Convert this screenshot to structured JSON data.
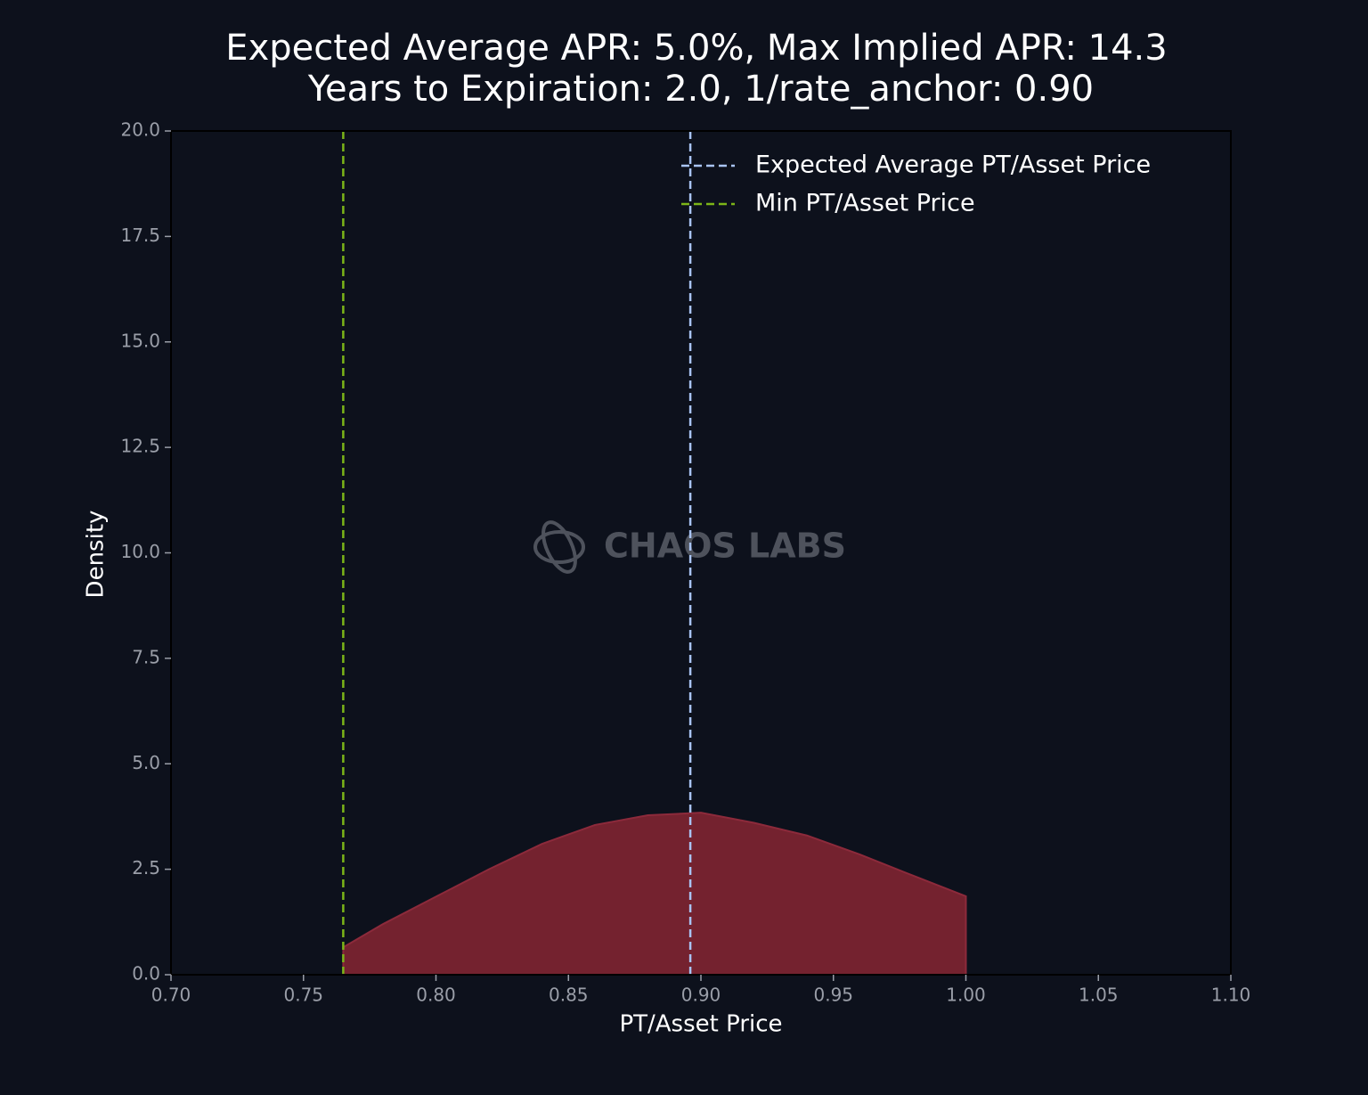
{
  "chart_data": {
    "type": "area",
    "title": [
      "Expected Average APR: 5.0%, Max Implied APR: 14.3",
      "Years to Expiration: 2.0, 1/rate_anchor: 0.90"
    ],
    "xlabel": "PT/Asset Price",
    "ylabel": "Density",
    "watermark": "CHAOS LABS",
    "xlim": [
      0.7,
      1.1
    ],
    "ylim": [
      0,
      20
    ],
    "xticks": [
      {
        "value": 0.7,
        "label": "0.70"
      },
      {
        "value": 0.75,
        "label": "0.75"
      },
      {
        "value": 0.8,
        "label": "0.80"
      },
      {
        "value": 0.85,
        "label": "0.85"
      },
      {
        "value": 0.9,
        "label": "0.90"
      },
      {
        "value": 0.95,
        "label": "0.95"
      },
      {
        "value": 1.0,
        "label": "1.00"
      },
      {
        "value": 1.05,
        "label": "1.05"
      },
      {
        "value": 1.1,
        "label": "1.10"
      }
    ],
    "yticks": [
      {
        "value": 0,
        "label": "0.0"
      },
      2.5,
      {
        "value": 5,
        "label": "5.0"
      },
      7.5,
      {
        "value": 10,
        "label": "10.0"
      },
      12.5,
      {
        "value": 15,
        "label": "15.0"
      },
      17.5,
      {
        "value": 20,
        "label": "20.0"
      }
    ],
    "series": [
      {
        "color": "#74222f",
        "x": [
          0.765,
          0.78,
          0.8,
          0.82,
          0.84,
          0.86,
          0.88,
          0.9,
          0.92,
          0.94,
          0.96,
          0.98,
          1.0
        ],
        "values": [
          0.65,
          1.2,
          1.85,
          2.5,
          3.1,
          3.55,
          3.78,
          3.84,
          3.6,
          3.3,
          2.85,
          2.35,
          1.86
        ]
      }
    ],
    "vlines": [
      {
        "name": "Expected Average PT/Asset Price",
        "color": "#a9c4f5",
        "x": 0.896
      },
      {
        "name": "Min PT/Asset Price",
        "color": "#7cb518",
        "x": 0.765
      }
    ]
  }
}
